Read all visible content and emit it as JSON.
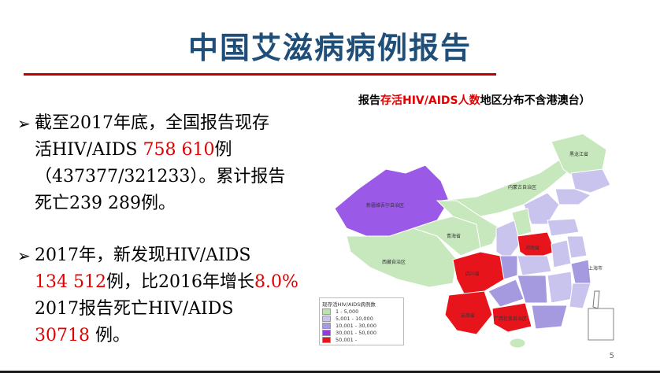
{
  "title": "中国艾滋病病例报告",
  "bullets": {
    "b1_line1": "截至2017年底，全国报告现存",
    "b1_line2_pre": "活HIV/AIDS ",
    "b1_line2_num": "758 610",
    "b1_line2_post": "例",
    "b1_line3": "（437377/321233）。累计报告",
    "b1_line4": "死亡239 289例。",
    "b2_line1": "2017年，新发现HIV/AIDS",
    "b2_line2_num": "134 512",
    "b2_line2_mid": "例，比2016年增长",
    "b2_line2_pct": "8.0%",
    "b2_line3": "2017报告死亡HIV/AIDS",
    "b2_line4_num": "30718",
    "b2_line4_post": " 例。",
    "arrow": "➢"
  },
  "map_caption": {
    "pre": "报告",
    "highlight": "存活HIV/AIDS人数",
    "post": "地区分布不含港澳台）"
  },
  "legend": {
    "title": "现存活HIV/AIDS病例数",
    "items": [
      {
        "label": "1 - 5,000",
        "color": "#b9e3b0"
      },
      {
        "label": "5,001 - 10,000",
        "color": "#c9c4ee"
      },
      {
        "label": "10,001 - 30,000",
        "color": "#a59ae0"
      },
      {
        "label": "30,001 - 50,000",
        "color": "#8f3fd9"
      },
      {
        "label": "50,001 -",
        "color": "#e8141c"
      }
    ]
  },
  "province_labels": {
    "xinjiang": "新疆维吾尔自治区",
    "xizang": "西藏自治区",
    "qinghai": "青海省",
    "neimenggu": "内蒙古自治区",
    "heilongjiang": "黑龙江省",
    "sichuan": "四川省",
    "yunnan": "云南省",
    "henan": "河南省",
    "guangxi": "广西壮族自治区",
    "shanghai": "上海市"
  },
  "page_number": "5"
}
